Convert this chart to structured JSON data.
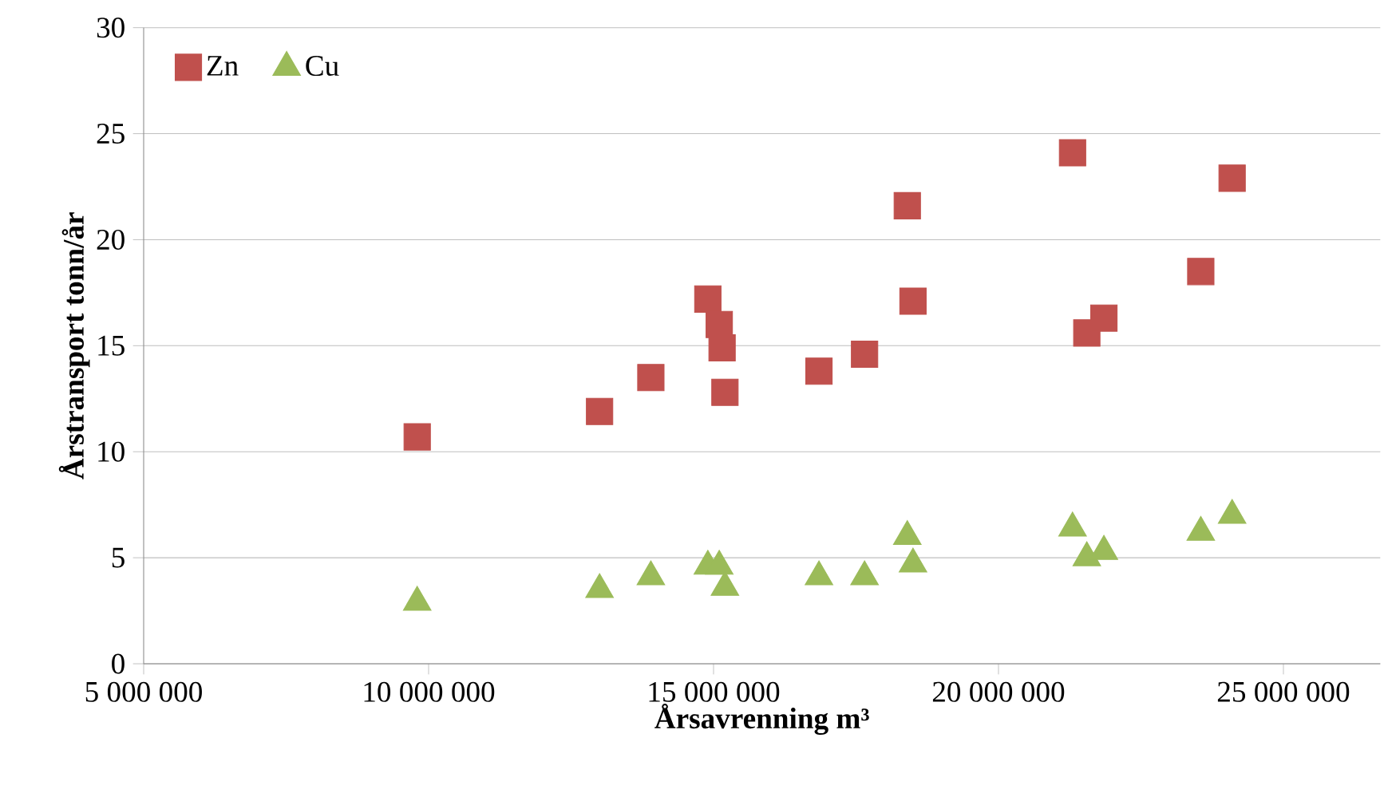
{
  "chart_data": {
    "type": "scatter",
    "xlabel": "Årsavrenning m³",
    "ylabel": "Årstransport tonn/år",
    "xlim": [
      5000000,
      26700000
    ],
    "xticks": [
      {
        "value": 5000000,
        "label": "5 000 000"
      },
      {
        "value": 10000000,
        "label": "10 000 000"
      },
      {
        "value": 15000000,
        "label": "15 000 000"
      },
      {
        "value": 20000000,
        "label": "20 000 000"
      },
      {
        "value": 25000000,
        "label": "25 000 000"
      }
    ],
    "ylim": [
      0,
      30
    ],
    "yticks": [
      0,
      5,
      10,
      15,
      20,
      25,
      30
    ],
    "grid": "y",
    "legend": "top left",
    "series": [
      {
        "name": "Zn",
        "color": "#c0504d",
        "marker": "square",
        "x": [
          9800000,
          13000000,
          13900000,
          14900000,
          15100000,
          15150000,
          15200000,
          16850000,
          17650000,
          18400000,
          18500000,
          21300000,
          21550000,
          21850000,
          23550000,
          24100000
        ],
        "values": [
          10.7,
          11.9,
          13.5,
          17.2,
          16.0,
          14.9,
          12.8,
          13.8,
          14.6,
          21.6,
          17.1,
          24.1,
          15.6,
          16.3,
          18.5,
          22.9
        ]
      },
      {
        "name": "Cu",
        "color": "#9bbb59",
        "marker": "triangle",
        "x": [
          9800000,
          13000000,
          13900000,
          14900000,
          15100000,
          15200000,
          16850000,
          17650000,
          18400000,
          18500000,
          21300000,
          21550000,
          21850000,
          23550000,
          24100000
        ],
        "values": [
          2.9,
          3.5,
          4.1,
          4.6,
          4.6,
          3.6,
          4.1,
          4.1,
          6.0,
          4.7,
          6.4,
          5.0,
          5.3,
          6.2,
          7.0
        ]
      }
    ]
  }
}
